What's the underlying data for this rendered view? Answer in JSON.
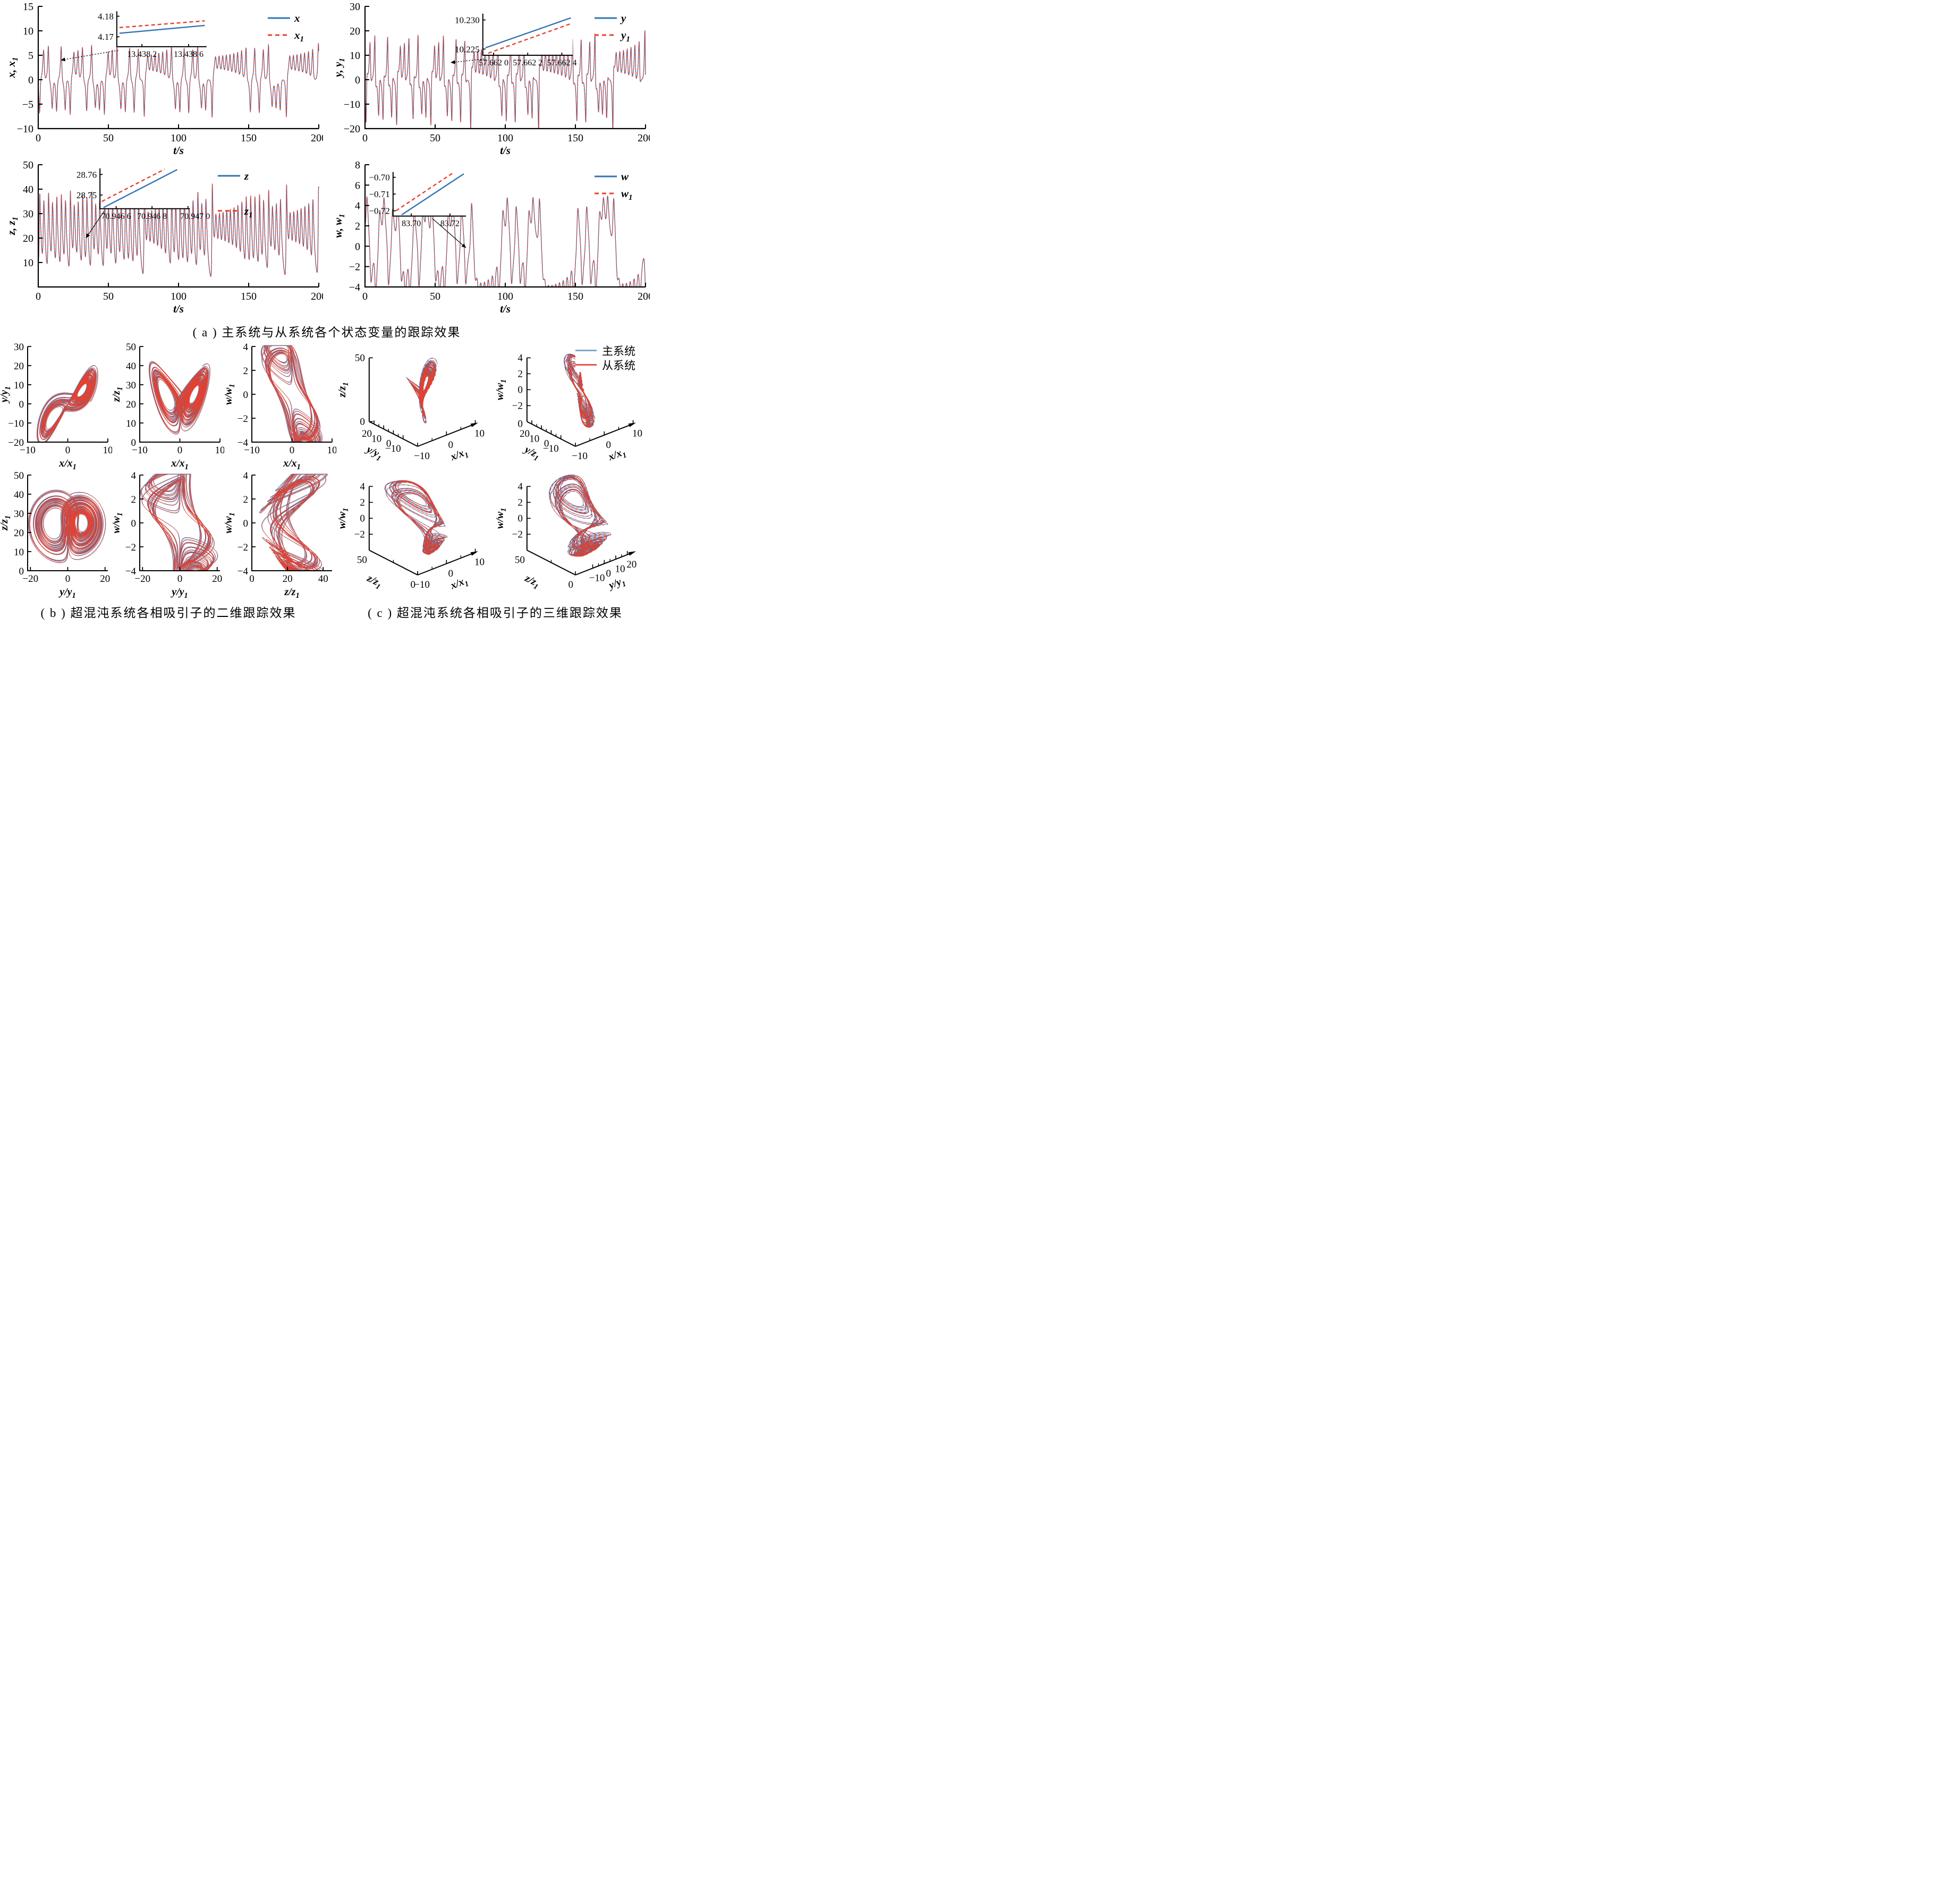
{
  "render": {
    "colors": {
      "master_line": "#2f74b4",
      "slave_line": "#e8402e",
      "legend_master": "#7fa9c3",
      "legend_slave": "#e4564a",
      "axis": "#000000",
      "background": "#ffffff"
    },
    "generator": {
      "model": "lorenz4d",
      "sigma": 10,
      "rho": 28,
      "beta": 2.6667,
      "w_gain": 0.55,
      "w_rate": 3,
      "scales": {
        "x": 0.42,
        "y": 0.85,
        "z": 0.93,
        "w": 1
      },
      "duration_s": 200
    }
  },
  "chart_data": {
    "type": [
      "line",
      "phase2d",
      "phase3d"
    ],
    "section_a": {
      "caption": "( a ) 主系统与从系统各个状态变量的跟踪效果",
      "panels": [
        {
          "ylabel": "x, x_1",
          "xlabel": "t/s",
          "ylim": [
            -10,
            15
          ],
          "xlim": [
            0,
            200
          ],
          "yticks": [
            "15",
            "10",
            "5",
            "0",
            "−5",
            "−10"
          ],
          "xticks": [
            "0",
            "50",
            "100",
            "150",
            "200"
          ],
          "legend": [
            "x",
            "x_1"
          ],
          "inset": {
            "ylabels": [
              "4.18",
              "4.17"
            ],
            "xlabels": [
              "13.438 2",
              "13.438 6"
            ]
          },
          "var": "x",
          "signal_range": [
            -7.5,
            8
          ]
        },
        {
          "ylabel": "y, y_1",
          "xlabel": "t/s",
          "ylim": [
            -20,
            30
          ],
          "xlim": [
            0,
            200
          ],
          "yticks": [
            "30",
            "20",
            "10",
            "0",
            "−10",
            "−20"
          ],
          "xticks": [
            "0",
            "50",
            "100",
            "150",
            "200"
          ],
          "legend": [
            "y",
            "y_1"
          ],
          "inset": {
            "ylabels": [
              "10.230",
              "10.225"
            ],
            "xlabels": [
              "57.662 0",
              "57.662 2",
              "57.662 4"
            ]
          },
          "var": "y",
          "signal_range": [
            -18,
            23
          ]
        },
        {
          "ylabel": "z, z_1",
          "xlabel": "t/s",
          "ylim": [
            0,
            50
          ],
          "xlim": [
            0,
            200
          ],
          "yticks": [
            "50",
            "40",
            "30",
            "20",
            "10"
          ],
          "xticks": [
            "0",
            "50",
            "100",
            "150",
            "200"
          ],
          "legend": [
            "z",
            "z_1"
          ],
          "inset": {
            "ylabels": [
              "28.76",
              "28.75"
            ],
            "xlabels": [
              "70.946 6",
              "70.946 8",
              "70.947 0"
            ]
          },
          "var": "z",
          "signal_range": [
            2,
            43
          ]
        },
        {
          "ylabel": "w, w_1",
          "xlabel": "t/s",
          "ylim": [
            -4,
            8
          ],
          "xlim": [
            0,
            200
          ],
          "yticks": [
            "8",
            "6",
            "4",
            "2",
            "0",
            "−2",
            "−4"
          ],
          "xticks": [
            "0",
            "50",
            "100",
            "150",
            "200"
          ],
          "legend": [
            "w",
            "w_1"
          ],
          "inset": {
            "ylabels": [
              "−0.70",
              "−0.71",
              "−0.72"
            ],
            "xlabels": [
              "83.70",
              "83.72"
            ]
          },
          "var": "w",
          "signal_range": [
            -3.2,
            3.2
          ]
        }
      ]
    },
    "section_b": {
      "caption": "( b ) 超混沌系统各相吸引子的二维跟踪效果",
      "plots": [
        {
          "xlabel": "x/x_1",
          "ylabel": "y/y_1",
          "xlim": [
            -10,
            10
          ],
          "ylim": [
            -20,
            30
          ],
          "xticks": [
            "−10",
            "0",
            "10"
          ],
          "yticks": [
            "30",
            "20",
            "10",
            "0",
            "−10",
            "−20"
          ],
          "vars": [
            "x",
            "y"
          ]
        },
        {
          "xlabel": "x/x_1",
          "ylabel": "z/z_1",
          "xlim": [
            -10,
            10
          ],
          "ylim": [
            0,
            50
          ],
          "xticks": [
            "−10",
            "0",
            "10"
          ],
          "yticks": [
            "50",
            "40",
            "30",
            "20",
            "10",
            "0"
          ],
          "vars": [
            "x",
            "z"
          ]
        },
        {
          "xlabel": "x/x_1",
          "ylabel": "w/w_1",
          "xlim": [
            -10,
            10
          ],
          "ylim": [
            -4,
            4
          ],
          "xticks": [
            "−10",
            "0",
            "10"
          ],
          "yticks": [
            "4",
            "2",
            "0",
            "−2",
            "−4"
          ],
          "vars": [
            "x",
            "w"
          ]
        },
        {
          "xlabel": "y/y_1",
          "ylabel": "z/z_1",
          "xlim": [
            -21.5,
            21.5
          ],
          "ylim": [
            0,
            50
          ],
          "xticks": [
            "−20",
            "0",
            "20"
          ],
          "yticks": [
            "50",
            "40",
            "30",
            "20",
            "10",
            "0"
          ],
          "vars": [
            "y",
            "z"
          ]
        },
        {
          "xlabel": "y/y_1",
          "ylabel": "w/w_1",
          "xlim": [
            -21.5,
            21.5
          ],
          "ylim": [
            -4,
            4
          ],
          "xticks": [
            "−20",
            "0",
            "20"
          ],
          "yticks": [
            "4",
            "2",
            "0",
            "−2",
            "−4"
          ],
          "vars": [
            "y",
            "w"
          ]
        },
        {
          "xlabel": "z/z_1",
          "ylabel": "w/w_1",
          "xlim": [
            0,
            45
          ],
          "ylim": [
            -4,
            4
          ],
          "xticks": [
            "0",
            "20",
            "40"
          ],
          "yticks": [
            "4",
            "2",
            "0",
            "−2",
            "−4"
          ],
          "vars": [
            "z",
            "w"
          ]
        }
      ]
    },
    "section_c": {
      "caption": "( c ) 超混沌系统各相吸引子的三维跟踪效果",
      "legend": [
        "主系统",
        "从系统"
      ],
      "axis_limits": {
        "x": [
          -10,
          10
        ],
        "y": [
          -25,
          25
        ],
        "z": [
          0,
          50
        ],
        "w": [
          -4,
          4
        ]
      },
      "plots": [
        {
          "vlabel": "z/z_1",
          "vticks": [
            "50",
            "0"
          ],
          "llabel": "y/y_1",
          "lticks": [
            "20",
            "10",
            "0",
            "−10"
          ],
          "rlabel": "x/x_1",
          "rticks": [
            "−10",
            "0",
            "10"
          ],
          "vars": [
            "x",
            "y",
            "z"
          ]
        },
        {
          "vlabel": "w/w_1",
          "vticks": [
            "4",
            "2",
            "0",
            "−2"
          ],
          "corner_label": "0",
          "llabel": "y/z_1",
          "lticks": [
            "20",
            "10",
            "0",
            "−10"
          ],
          "rlabel": "x/x_1",
          "rticks": [
            "−10",
            "0",
            "10"
          ],
          "vars": [
            "x",
            "y",
            "w"
          ]
        },
        {
          "vlabel": "w/w_1",
          "vticks": [
            "4",
            "2",
            "0",
            "−2"
          ],
          "llabel": "z/z_1",
          "lticks": [
            "50",
            "0"
          ],
          "rlabel": "x/x_1",
          "rticks": [
            "−10",
            "0",
            "10"
          ],
          "vars": [
            "x",
            "z",
            "w"
          ]
        },
        {
          "vlabel": "w/w_1",
          "vticks": [
            "4",
            "2",
            "0",
            "−2"
          ],
          "llabel": "z/z_1",
          "lticks": [
            "50",
            "0"
          ],
          "rlabel": "y/y_1",
          "rticks": [
            "−10",
            "0",
            "10",
            "20"
          ],
          "vars": [
            "y",
            "z",
            "w"
          ]
        }
      ]
    }
  }
}
